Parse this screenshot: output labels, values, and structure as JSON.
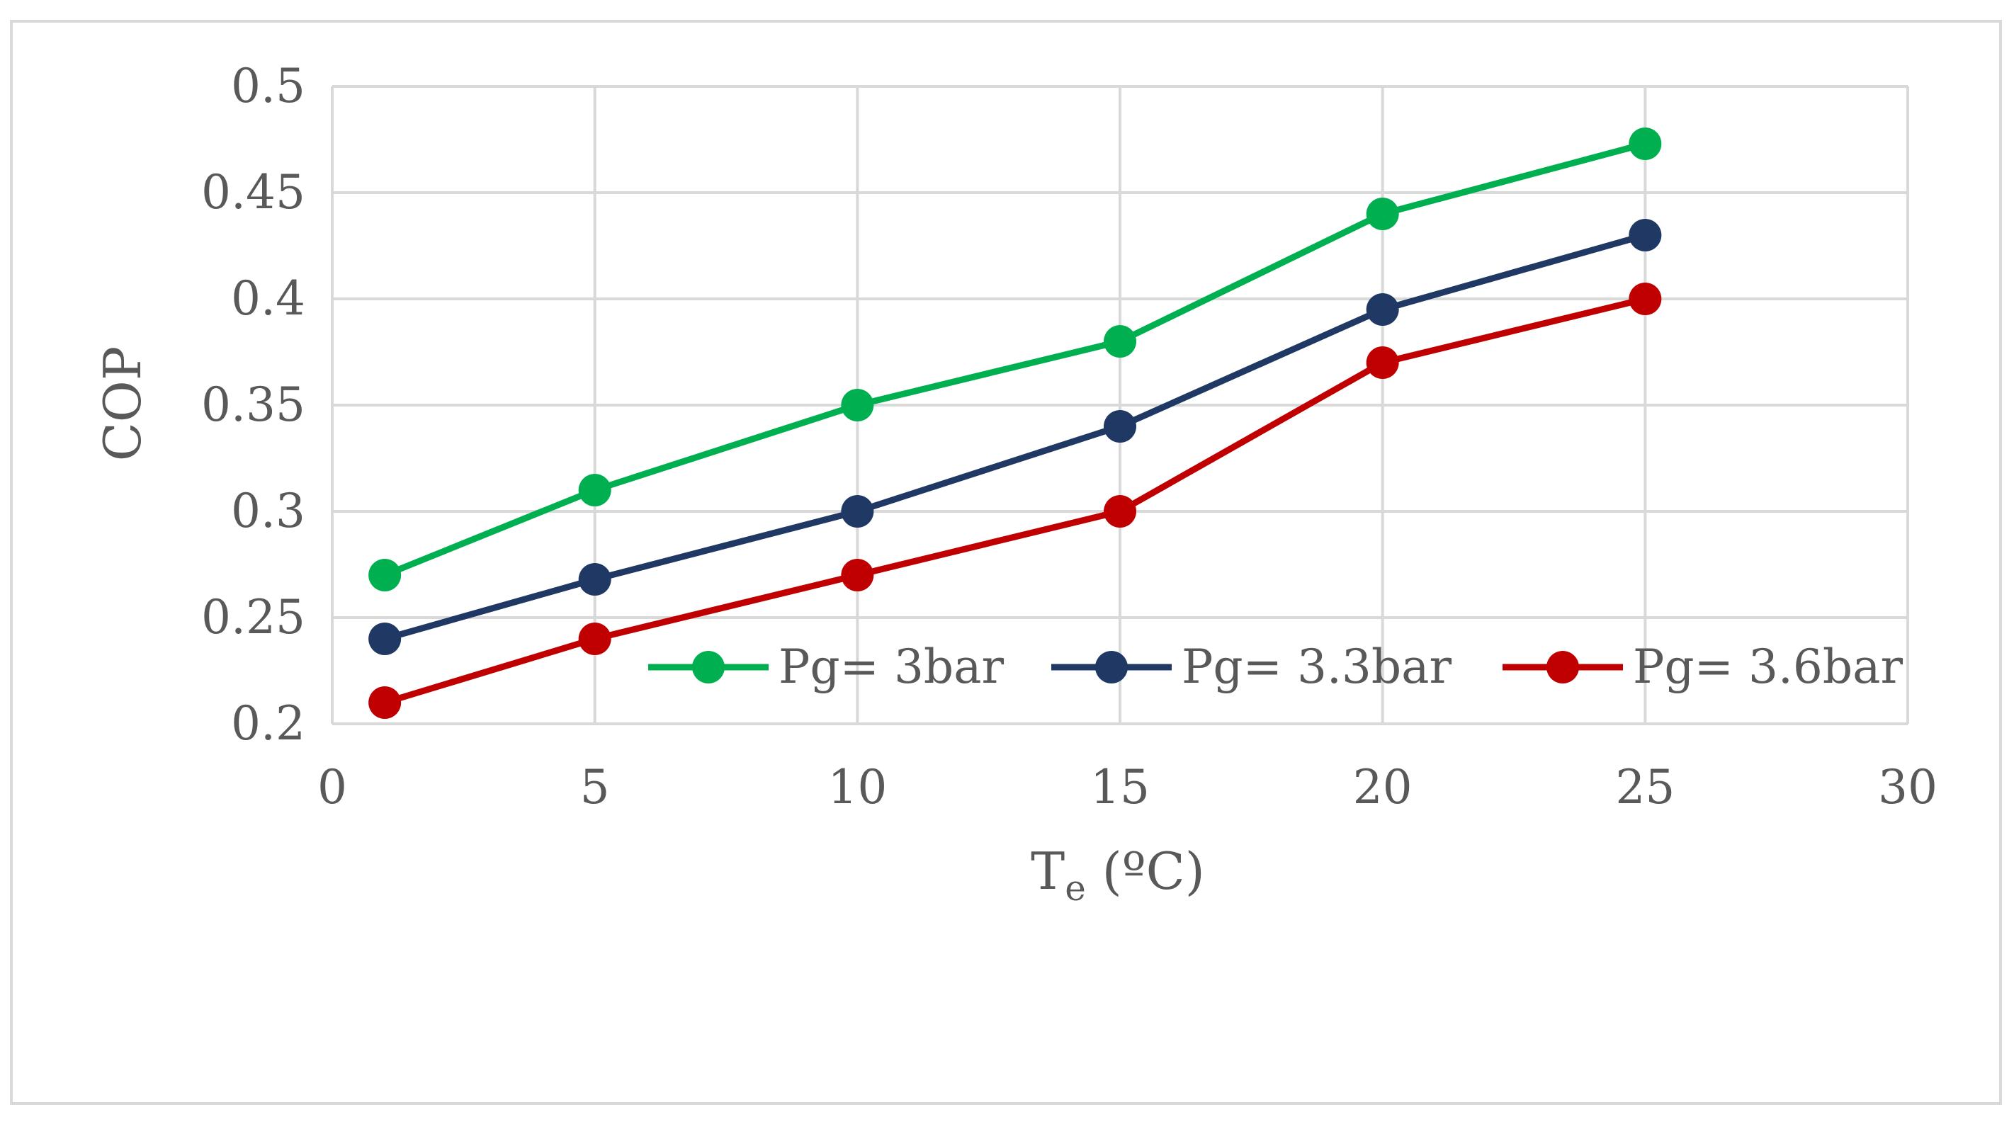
{
  "chart_data": {
    "type": "line",
    "title": "",
    "xlabel": "Te (ºC)",
    "xlabel_main": "T",
    "xlabel_sub": "e",
    "xlabel_rest": " (ºC)",
    "ylabel": "COP",
    "xlim": [
      0,
      30
    ],
    "ylim": [
      0.2,
      0.5
    ],
    "xticks": [
      0,
      5,
      10,
      15,
      20,
      25,
      30
    ],
    "xtick_labels": [
      "0",
      "5",
      "10",
      "15",
      "20",
      "25",
      "30"
    ],
    "yticks": [
      0.2,
      0.25,
      0.3,
      0.35,
      0.4,
      0.45,
      0.5
    ],
    "ytick_labels": [
      "0.2",
      "0.25",
      "0.3",
      "0.35",
      "0.4",
      "0.45",
      "0.5"
    ],
    "grid": true,
    "legend_position": "inside-bottom-right",
    "x": [
      1,
      5,
      10,
      15,
      20,
      25
    ],
    "series": [
      {
        "name": "Pg= 3bar",
        "color": "#00b050",
        "values": [
          0.27,
          0.31,
          0.35,
          0.38,
          0.44,
          0.473
        ]
      },
      {
        "name": "Pg= 3.3bar",
        "color": "#1f3864",
        "values": [
          0.24,
          0.268,
          0.3,
          0.34,
          0.395,
          0.43
        ]
      },
      {
        "name": "Pg= 3.6bar",
        "color": "#c00000",
        "values": [
          0.21,
          0.24,
          0.27,
          0.3,
          0.37,
          0.4
        ]
      }
    ]
  }
}
